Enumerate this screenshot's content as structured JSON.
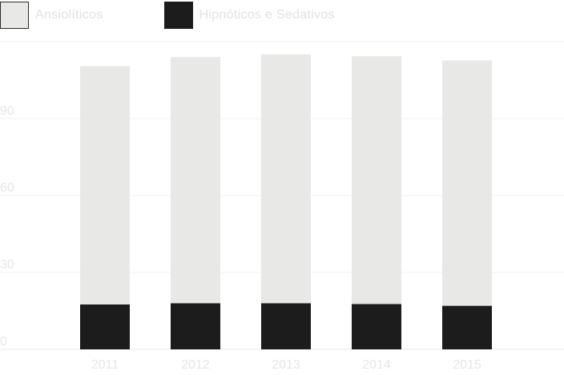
{
  "chart_data": {
    "type": "bar",
    "stacked": true,
    "categories": [
      "2011",
      "2012",
      "2013",
      "2014",
      "2015"
    ],
    "series": [
      {
        "name": "Hipnóticos e Sedativos",
        "color": "#1c1c1c",
        "values": [
          17.5,
          18,
          18,
          17.7,
          17
        ]
      },
      {
        "name": "Ansiolíticos",
        "color": "#e8e8e7",
        "values": [
          93,
          96,
          97,
          96.6,
          95.7
        ]
      }
    ],
    "yticks": [
      "0",
      "30",
      "60",
      "90"
    ],
    "ytick_values": [
      0,
      30,
      60,
      90
    ],
    "ylim": [
      0,
      120
    ],
    "grid": true,
    "legend_position": "top-left",
    "legend_order": [
      "Ansiolíticos",
      "Hipnóticos e Sedativos"
    ],
    "title": "",
    "xlabel": "",
    "ylabel": ""
  }
}
